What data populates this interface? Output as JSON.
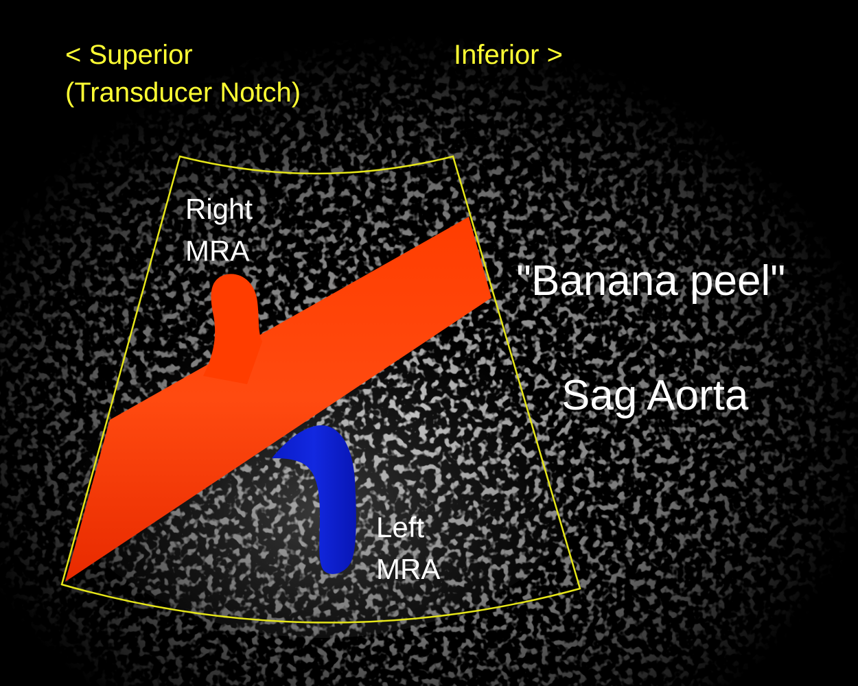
{
  "colors": {
    "background": "#000000",
    "sector_outline": "#e6e619",
    "aorta": "#ff3300",
    "right_mra": "#ff3300",
    "left_mra": "#0b1fd6",
    "orientation_text": "#ffff33",
    "label_text": "#ffffff"
  },
  "orientation": {
    "superior": "< Superior",
    "transducer_notch": "(Transducer Notch)",
    "inferior": "Inferior >"
  },
  "vessels": {
    "right_mra": {
      "line1": "Right",
      "line2": "MRA"
    },
    "left_mra": {
      "line1": "Left",
      "line2": "MRA"
    }
  },
  "captions": {
    "banana_peel": "\"Banana peel\"",
    "view": "Sag Aorta"
  }
}
